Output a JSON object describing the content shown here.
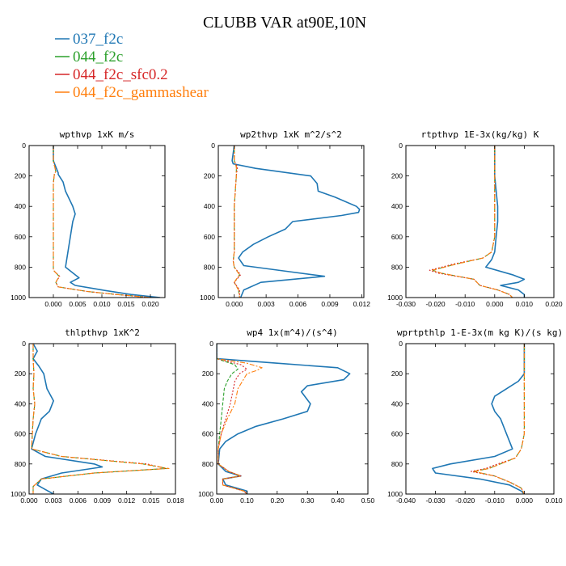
{
  "title": "CLUBB VAR at90E,10N",
  "legend": [
    {
      "label": "037_f2c",
      "color": "#1f77b4"
    },
    {
      "label": "044_f2c",
      "color": "#2ca02c"
    },
    {
      "label": "044_f2c_sfc0.2",
      "color": "#d62728"
    },
    {
      "label": "044_f2c_gammashear",
      "color": "#ff7f0e"
    }
  ],
  "chart_data": [
    {
      "type": "line",
      "title": "wpthvp 1xK m/s",
      "xlim": [
        -0.005,
        0.023
      ],
      "xticks": [
        0.0,
        0.005,
        0.01,
        0.015,
        0.02
      ],
      "xtick_labels": [
        "0.000",
        "0.005",
        "0.010",
        "0.015",
        "0.020"
      ],
      "ylim": [
        1000,
        0
      ],
      "yticks": [
        0,
        200,
        400,
        600,
        800,
        1000
      ],
      "series": [
        {
          "name": "037_f2c",
          "y": [
            0,
            100,
            180,
            190,
            240,
            300,
            400,
            450,
            500,
            600,
            700,
            800,
            870,
            900,
            920,
            950,
            980,
            1000
          ],
          "x": [
            0.0,
            0.0,
            0.001,
            0.001,
            0.002,
            0.0025,
            0.004,
            0.0045,
            0.004,
            0.0035,
            0.003,
            0.0025,
            0.0053,
            0.0035,
            0.0045,
            0.01,
            0.016,
            0.022
          ]
        },
        {
          "name": "044_f2c",
          "y": [
            0,
            100,
            170,
            190,
            250,
            400,
            600,
            780,
            820,
            860,
            900,
            930,
            960,
            980,
            1000
          ],
          "x": [
            0.0,
            0.0,
            0.0005,
            0.0002,
            0.0,
            0.0,
            0.0,
            0.0,
            0.0,
            0.0012,
            0.0005,
            0.001,
            0.007,
            0.013,
            0.02
          ]
        },
        {
          "name": "044_f2c_sfc0.2",
          "y": [
            0,
            100,
            170,
            190,
            250,
            400,
            600,
            780,
            820,
            860,
            900,
            930,
            960,
            980,
            1000
          ],
          "x": [
            0.0,
            0.0,
            0.0005,
            0.0002,
            0.0,
            0.0,
            0.0,
            0.0,
            0.0,
            0.0013,
            0.0005,
            0.001,
            0.007,
            0.013,
            0.02
          ]
        },
        {
          "name": "044_f2c_gammashear",
          "y": [
            0,
            100,
            170,
            190,
            250,
            400,
            600,
            780,
            820,
            860,
            900,
            930,
            960,
            980,
            1000
          ],
          "x": [
            0.0,
            0.0,
            0.0005,
            0.0002,
            0.0,
            0.0,
            0.0,
            0.0,
            0.0,
            0.0012,
            0.0005,
            0.001,
            0.007,
            0.013,
            0.02
          ]
        }
      ]
    },
    {
      "type": "line",
      "title": "wp2thvp 1xK m^2/s^2",
      "xlim": [
        -0.0015,
        0.0122
      ],
      "xticks": [
        0.0,
        0.003,
        0.006,
        0.009,
        0.012
      ],
      "xtick_labels": [
        "0.000",
        "0.003",
        "0.006",
        "0.009",
        "0.012"
      ],
      "ylim": [
        1000,
        0
      ],
      "yticks": [
        0,
        200,
        400,
        600,
        800,
        1000
      ],
      "series": [
        {
          "name": "037_f2c",
          "y": [
            0,
            100,
            120,
            150,
            200,
            250,
            300,
            340,
            400,
            420,
            440,
            460,
            500,
            550,
            600,
            650,
            700,
            740,
            790,
            830,
            860,
            900,
            950,
            1000
          ],
          "x": [
            0.0,
            -0.0002,
            -0.0001,
            0.002,
            0.0072,
            0.0078,
            0.0079,
            0.0095,
            0.0115,
            0.0118,
            0.0117,
            0.0101,
            0.0055,
            0.0048,
            0.0032,
            0.0018,
            0.0008,
            0.0004,
            0.0009,
            0.0052,
            0.0085,
            0.0025,
            0.0009,
            0.0006
          ]
        },
        {
          "name": "044_f2c",
          "y": [
            0,
            100,
            140,
            200,
            400,
            600,
            700,
            760,
            800,
            850,
            900,
            950,
            1000
          ],
          "x": [
            0.0,
            0.0,
            0.0002,
            0.0002,
            0.0,
            0.0,
            0.0,
            -0.0001,
            0.0,
            0.0005,
            0.0,
            0.0004,
            0.0005
          ]
        },
        {
          "name": "044_f2c_sfc0.2",
          "y": [
            0,
            100,
            140,
            200,
            400,
            600,
            700,
            760,
            800,
            850,
            900,
            950,
            1000
          ],
          "x": [
            0.0,
            0.0,
            0.0003,
            0.0002,
            0.0,
            0.0,
            0.0,
            -0.0001,
            0.0,
            0.0006,
            0.0,
            0.0005,
            0.0005
          ]
        },
        {
          "name": "044_f2c_gammashear",
          "y": [
            0,
            100,
            140,
            200,
            400,
            600,
            700,
            760,
            800,
            850,
            900,
            950,
            1000
          ],
          "x": [
            0.0,
            0.0,
            0.0002,
            0.0002,
            0.0,
            0.0,
            0.0,
            -0.0001,
            0.0,
            0.0005,
            0.0,
            0.0004,
            0.0005
          ]
        }
      ]
    },
    {
      "type": "line",
      "title": "rtpthvp 1E-3x(kg/kg) K",
      "xlim": [
        -0.03,
        0.02
      ],
      "xticks": [
        -0.03,
        -0.02,
        -0.01,
        0.0,
        0.01,
        0.02
      ],
      "xtick_labels": [
        "-0.030",
        "-0.020",
        "-0.010",
        "0.000",
        "0.010",
        "0.020"
      ],
      "ylim": [
        1000,
        0
      ],
      "yticks": [
        0,
        200,
        400,
        600,
        800,
        1000
      ],
      "series": [
        {
          "name": "037_f2c",
          "y": [
            0,
            200,
            400,
            500,
            600,
            700,
            750,
            800,
            850,
            880,
            900,
            920,
            950,
            980,
            1000
          ],
          "x": [
            0.0,
            0.0,
            0.001,
            0.001,
            0.0005,
            0.0,
            -0.001,
            -0.003,
            0.006,
            0.01,
            0.008,
            0.002,
            0.008,
            0.01,
            0.01
          ]
        },
        {
          "name": "044_f2c",
          "y": [
            0,
            600,
            700,
            740,
            780,
            820,
            840,
            880,
            920,
            950,
            980,
            1000
          ],
          "x": [
            0.0,
            0.0,
            -0.001,
            -0.004,
            -0.013,
            -0.021,
            -0.018,
            -0.007,
            -0.005,
            0.001,
            0.005,
            0.006
          ]
        },
        {
          "name": "044_f2c_sfc0.2",
          "y": [
            0,
            600,
            700,
            740,
            780,
            820,
            840,
            880,
            920,
            950,
            980,
            1000
          ],
          "x": [
            0.0,
            0.0,
            -0.001,
            -0.004,
            -0.014,
            -0.022,
            -0.019,
            -0.007,
            -0.005,
            0.001,
            0.005,
            0.006
          ]
        },
        {
          "name": "044_f2c_gammashear",
          "y": [
            0,
            600,
            700,
            740,
            780,
            820,
            840,
            880,
            920,
            950,
            980,
            1000
          ],
          "x": [
            0.0,
            0.0,
            -0.001,
            -0.004,
            -0.013,
            -0.021,
            -0.018,
            -0.007,
            -0.005,
            0.001,
            0.005,
            0.006
          ]
        }
      ]
    },
    {
      "type": "line",
      "title": "thlpthvp 1xK^2",
      "xlim": [
        0.0,
        0.018
      ],
      "xticks": [
        0.0,
        0.003,
        0.006,
        0.009,
        0.012,
        0.015,
        0.018
      ],
      "xtick_labels": [
        "0.000",
        "0.003",
        "0.006",
        "0.009",
        "0.012",
        "0.015",
        "0.018"
      ],
      "ylim": [
        1000,
        0
      ],
      "yticks": [
        0,
        200,
        400,
        600,
        800,
        1000
      ],
      "series": [
        {
          "name": "037_f2c",
          "y": [
            0,
            50,
            100,
            150,
            200,
            300,
            380,
            450,
            500,
            600,
            700,
            750,
            800,
            820,
            860,
            900,
            940,
            970,
            1000
          ],
          "x": [
            0.0005,
            0.001,
            0.0005,
            0.0012,
            0.0018,
            0.0022,
            0.003,
            0.0025,
            0.0015,
            0.0008,
            0.0003,
            0.002,
            0.008,
            0.009,
            0.004,
            0.0015,
            0.001,
            0.002,
            0.003
          ]
        },
        {
          "name": "044_f2c",
          "y": [
            0,
            100,
            200,
            300,
            400,
            500,
            600,
            700,
            750,
            800,
            830,
            860,
            900,
            950,
            1000
          ],
          "x": [
            0.0005,
            0.0005,
            0.0006,
            0.0005,
            0.0007,
            0.0005,
            0.0004,
            0.0003,
            0.004,
            0.014,
            0.017,
            0.008,
            0.0015,
            0.0005,
            0.0005
          ]
        },
        {
          "name": "044_f2c_sfc0.2",
          "y": [
            0,
            100,
            200,
            300,
            400,
            500,
            600,
            700,
            750,
            800,
            830,
            860,
            900,
            950,
            1000
          ],
          "x": [
            0.0005,
            0.0005,
            0.0006,
            0.0005,
            0.0007,
            0.0005,
            0.0004,
            0.0003,
            0.004,
            0.0145,
            0.0168,
            0.008,
            0.0015,
            0.0005,
            0.0005
          ]
        },
        {
          "name": "044_f2c_gammashear",
          "y": [
            0,
            100,
            200,
            300,
            400,
            500,
            600,
            700,
            750,
            800,
            830,
            860,
            900,
            950,
            1000
          ],
          "x": [
            0.0005,
            0.0005,
            0.0006,
            0.0005,
            0.0007,
            0.0005,
            0.0004,
            0.0003,
            0.004,
            0.014,
            0.0172,
            0.008,
            0.0015,
            0.0005,
            0.0005
          ]
        }
      ]
    },
    {
      "type": "line",
      "title": "wp4 1x(m^4)/(s^4)",
      "xlim": [
        0.0,
        0.5
      ],
      "xticks": [
        0.0,
        0.1,
        0.2,
        0.3,
        0.4,
        0.5
      ],
      "xtick_labels": [
        "0.00",
        "0.10",
        "0.20",
        "0.30",
        "0.40",
        "0.50"
      ],
      "ylim": [
        1000,
        0
      ],
      "yticks": [
        0,
        200,
        400,
        600,
        800,
        1000
      ],
      "series": [
        {
          "name": "037_f2c",
          "y": [
            0,
            100,
            130,
            160,
            200,
            240,
            280,
            320,
            400,
            450,
            500,
            550,
            600,
            650,
            700,
            800,
            850,
            880,
            900,
            940,
            980,
            1000
          ],
          "x": [
            0.0,
            0.0,
            0.2,
            0.4,
            0.44,
            0.42,
            0.3,
            0.28,
            0.31,
            0.3,
            0.22,
            0.13,
            0.07,
            0.03,
            0.01,
            0.005,
            0.03,
            0.08,
            0.02,
            0.03,
            0.1,
            0.1
          ]
        },
        {
          "name": "044_f2c",
          "y": [
            0,
            100,
            140,
            170,
            200,
            250,
            300,
            400,
            500,
            600,
            700,
            800,
            850,
            880,
            900,
            940,
            980,
            1000
          ],
          "x": [
            0.0,
            0.0,
            0.06,
            0.07,
            0.05,
            0.035,
            0.025,
            0.02,
            0.015,
            0.01,
            0.005,
            0.005,
            0.04,
            0.08,
            0.02,
            0.02,
            0.09,
            0.1
          ]
        },
        {
          "name": "044_f2c_sfc0.2",
          "y": [
            0,
            100,
            140,
            170,
            200,
            250,
            300,
            400,
            500,
            600,
            700,
            800,
            850,
            880,
            900,
            940,
            980,
            1000
          ],
          "x": [
            0.0,
            0.0,
            0.08,
            0.1,
            0.075,
            0.06,
            0.055,
            0.045,
            0.03,
            0.015,
            0.005,
            0.005,
            0.04,
            0.08,
            0.02,
            0.02,
            0.09,
            0.1
          ]
        },
        {
          "name": "044_f2c_gammashear",
          "y": [
            0,
            100,
            130,
            160,
            180,
            200,
            250,
            300,
            400,
            500,
            600,
            700,
            800,
            850,
            880,
            900,
            940,
            980,
            1000
          ],
          "x": [
            0.0,
            0.0,
            0.1,
            0.15,
            0.13,
            0.1,
            0.085,
            0.07,
            0.06,
            0.035,
            0.015,
            0.005,
            0.005,
            0.04,
            0.08,
            0.02,
            0.02,
            0.09,
            0.1
          ]
        }
      ]
    },
    {
      "type": "line",
      "title": "wprtpthlp 1-E-3x(m kg K)/(s kg)",
      "xlim": [
        -0.04,
        0.01
      ],
      "xticks": [
        -0.04,
        -0.03,
        -0.02,
        -0.01,
        0.0,
        0.01
      ],
      "xtick_labels": [
        "-0.040",
        "-0.030",
        "-0.020",
        "-0.010",
        "0.000",
        "0.010"
      ],
      "ylim": [
        1000,
        0
      ],
      "yticks": [
        0,
        200,
        400,
        600,
        800,
        1000
      ],
      "series": [
        {
          "name": "037_f2c",
          "y": [
            0,
            100,
            200,
            250,
            300,
            350,
            400,
            450,
            500,
            600,
            700,
            750,
            800,
            830,
            860,
            900,
            940,
            980,
            1000
          ],
          "x": [
            0.0,
            0.0,
            0.0,
            -0.002,
            -0.006,
            -0.01,
            -0.011,
            -0.01,
            -0.008,
            -0.006,
            -0.004,
            -0.01,
            -0.025,
            -0.031,
            -0.03,
            -0.015,
            -0.005,
            -0.001,
            0.0
          ]
        },
        {
          "name": "044_f2c",
          "y": [
            0,
            600,
            700,
            760,
            800,
            830,
            850,
            880,
            920,
            960,
            1000
          ],
          "x": [
            0.0,
            0.0,
            -0.001,
            -0.003,
            -0.008,
            -0.012,
            -0.017,
            -0.01,
            -0.005,
            -0.001,
            0.0
          ]
        },
        {
          "name": "044_f2c_sfc0.2",
          "y": [
            0,
            600,
            700,
            760,
            800,
            830,
            850,
            880,
            920,
            960,
            1000
          ],
          "x": [
            0.0,
            0.0,
            -0.001,
            -0.003,
            -0.009,
            -0.013,
            -0.018,
            -0.01,
            -0.005,
            -0.001,
            0.0
          ]
        },
        {
          "name": "044_f2c_gammashear",
          "y": [
            0,
            600,
            700,
            760,
            800,
            830,
            850,
            880,
            920,
            960,
            1000
          ],
          "x": [
            0.0,
            0.0,
            -0.001,
            -0.003,
            -0.008,
            -0.012,
            -0.017,
            -0.01,
            -0.005,
            -0.001,
            0.0
          ]
        }
      ]
    }
  ]
}
